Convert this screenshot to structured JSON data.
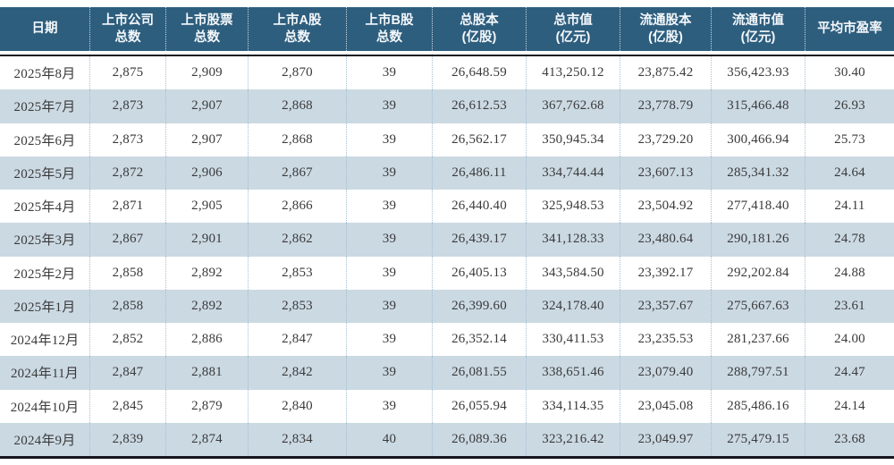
{
  "chart_data": {
    "type": "table",
    "title": "",
    "columns": [
      "日期",
      "上市公司\n总数",
      "上市股票\n总数",
      "上市A股\n总数",
      "上市B股\n总数",
      "总股本\n(亿股)",
      "总市值\n(亿元)",
      "流通股本\n(亿股)",
      "流通市值\n(亿元)",
      "平均市盈率"
    ],
    "rows": [
      [
        "2025年8月",
        "2,875",
        "2,909",
        "2,870",
        "39",
        "26,648.59",
        "413,250.12",
        "23,875.42",
        "356,423.93",
        "30.40"
      ],
      [
        "2025年7月",
        "2,873",
        "2,907",
        "2,868",
        "39",
        "26,612.53",
        "367,762.68",
        "23,778.79",
        "315,466.48",
        "26.93"
      ],
      [
        "2025年6月",
        "2,873",
        "2,907",
        "2,868",
        "39",
        "26,562.17",
        "350,945.34",
        "23,729.20",
        "300,466.94",
        "25.73"
      ],
      [
        "2025年5月",
        "2,872",
        "2,906",
        "2,867",
        "39",
        "26,486.11",
        "334,744.44",
        "23,607.13",
        "285,341.32",
        "24.64"
      ],
      [
        "2025年4月",
        "2,871",
        "2,905",
        "2,866",
        "39",
        "26,440.40",
        "325,948.53",
        "23,504.92",
        "277,418.40",
        "24.11"
      ],
      [
        "2025年3月",
        "2,867",
        "2,901",
        "2,862",
        "39",
        "26,439.17",
        "341,128.33",
        "23,480.64",
        "290,181.26",
        "24.78"
      ],
      [
        "2025年2月",
        "2,858",
        "2,892",
        "2,853",
        "39",
        "26,405.13",
        "343,584.50",
        "23,392.17",
        "292,202.84",
        "24.88"
      ],
      [
        "2025年1月",
        "2,858",
        "2,892",
        "2,853",
        "39",
        "26,399.60",
        "324,178.40",
        "23,357.67",
        "275,667.63",
        "23.61"
      ],
      [
        "2024年12月",
        "2,852",
        "2,886",
        "2,847",
        "39",
        "26,352.14",
        "330,411.53",
        "23,235.53",
        "281,237.66",
        "24.00"
      ],
      [
        "2024年11月",
        "2,847",
        "2,881",
        "2,842",
        "39",
        "26,081.55",
        "338,651.46",
        "23,079.40",
        "288,797.51",
        "24.47"
      ],
      [
        "2024年10月",
        "2,845",
        "2,879",
        "2,840",
        "39",
        "26,055.94",
        "334,114.35",
        "23,045.08",
        "285,486.16",
        "24.14"
      ],
      [
        "2024年9月",
        "2,839",
        "2,874",
        "2,834",
        "40",
        "26,089.36",
        "323,216.42",
        "23,049.97",
        "275,479.15",
        "23.68"
      ]
    ],
    "layout_hints": {
      "striped": true,
      "stripe_pattern": "even rows white, odd rows shaded (first data row white)",
      "column_separators": "dotted",
      "heavy_rule_below_header": true,
      "heavy_rule_at_bottom": true
    }
  },
  "colors": {
    "header_bg": "#2e5e7e",
    "header_text": "#f4f8fb",
    "row_alt_bg": "#cbd9e3",
    "row_bg": "#ffffff",
    "body_text": "#3a3a3a",
    "body_separator_dotted": "#a4c0d2",
    "header_separator_dotted": "#ffffff",
    "heavy_rule": "#15151d"
  }
}
